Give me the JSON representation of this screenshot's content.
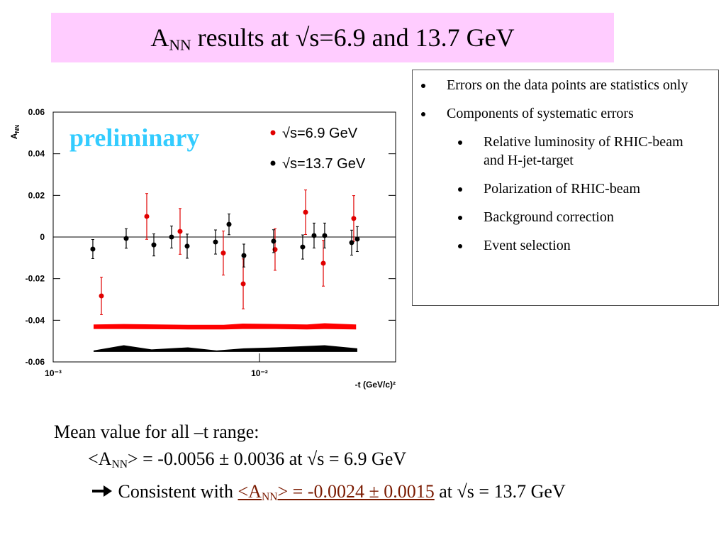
{
  "title": {
    "main": "A",
    "sub": "NN",
    "rest": " results  at √s=6.9 and 13.7 GeV"
  },
  "chart_data": {
    "type": "scatter",
    "log_x": true,
    "xlim": [
      0.001,
      0.0457
    ],
    "xticks": [
      {
        "value": 0.001,
        "label": "10⁻³"
      },
      {
        "value": 0.01,
        "label": "10⁻²"
      }
    ],
    "ylim": [
      -0.06,
      0.06
    ],
    "yticks": [
      0.06,
      0.04,
      0.02,
      0,
      -0.02,
      -0.04,
      -0.06
    ],
    "reference_line": 0,
    "y_label": {
      "main": "A",
      "sub": "NN"
    },
    "x_label": "-t (GeV/c)²",
    "annotation": "preliminary",
    "series": [
      {
        "name": "√s=6.9 GeV",
        "color": "#e00000",
        "x": [
          0.001713,
          0.002842,
          0.004122,
          0.006679,
          0.00834,
          0.0119,
          0.01673,
          0.02039,
          0.02864
        ],
        "values": [
          -0.0283,
          0.0099,
          0.0027,
          -0.0077,
          -0.0225,
          -0.006,
          0.0119,
          -0.0126,
          0.0089
        ],
        "errors": [
          0.009,
          0.011,
          0.011,
          0.0106,
          0.012,
          0.01,
          0.0107,
          0.011,
          0.011
        ]
      },
      {
        "name": "√s=13.7 GeV",
        "color": "#000000",
        "x": [
          0.001557,
          0.002259,
          0.003076,
          0.003748,
          0.004462,
          0.006123,
          0.007117,
          0.008403,
          0.01171,
          0.0162,
          0.01839,
          0.0207,
          0.02798,
          0.02979
        ],
        "values": [
          -0.0058,
          -0.0007,
          -0.0038,
          0,
          -0.0044,
          -0.0024,
          0.0061,
          -0.0089,
          -0.002,
          -0.0048,
          0.0007,
          0.0007,
          -0.0027,
          -0.001
        ],
        "errors": [
          0.0046,
          0.0047,
          0.0053,
          0.0053,
          0.0058,
          0.0058,
          0.005,
          0.0055,
          0.0055,
          0.0058,
          0.006,
          0.006,
          0.006,
          0.006
        ]
      }
    ],
    "bands": [
      {
        "color": "#ff0000",
        "x": [
          0.00157,
          0.0022,
          0.0045,
          0.0067,
          0.0083,
          0.012,
          0.017,
          0.0207,
          0.0294
        ],
        "upper": [
          -0.042,
          -0.0418,
          -0.0422,
          -0.0422,
          -0.0416,
          -0.0418,
          -0.042,
          -0.0414,
          -0.042
        ],
        "lower": [
          -0.0442,
          -0.0442,
          -0.0444,
          -0.0444,
          -0.0442,
          -0.0442,
          -0.0444,
          -0.0442,
          -0.0444
        ]
      },
      {
        "color": "#000000",
        "x": [
          0.00157,
          0.0022,
          0.003,
          0.0045,
          0.0062,
          0.0084,
          0.012,
          0.0207,
          0.0298
        ],
        "upper": [
          -0.0545,
          -0.052,
          -0.054,
          -0.053,
          -0.0545,
          -0.0535,
          -0.053,
          -0.052,
          -0.0535
        ],
        "lower": [
          -0.0552,
          -0.0552,
          -0.0552,
          -0.0552,
          -0.0552,
          -0.0552,
          -0.0552,
          -0.0552,
          -0.0552
        ]
      }
    ]
  },
  "bullets": [
    {
      "text": "Errors on the data points are statistics only",
      "level": 1
    },
    {
      "text": "Components of systematic errors",
      "level": 1
    },
    {
      "text": "Relative luminosity of RHIC-beam and H-jet-target",
      "level": 2
    },
    {
      "text": "Polarization of RHIC-beam",
      "level": 2
    },
    {
      "text": "Background correction",
      "level": 2
    },
    {
      "text": "Event selection",
      "level": 2
    }
  ],
  "summary": {
    "heading": "Mean value for all –t range:",
    "line1": {
      "a": "<A",
      "sub": "NN",
      "b": "> = -0.0056 ± 0.0036 at √s = 6.9 GeV"
    },
    "line2": {
      "prefix": " Consistent with ",
      "a": "<A",
      "sub": "NN",
      "b": "> = -0.0024 ± 0.0015",
      "suffix": " at √s = 13.7 GeV"
    }
  }
}
